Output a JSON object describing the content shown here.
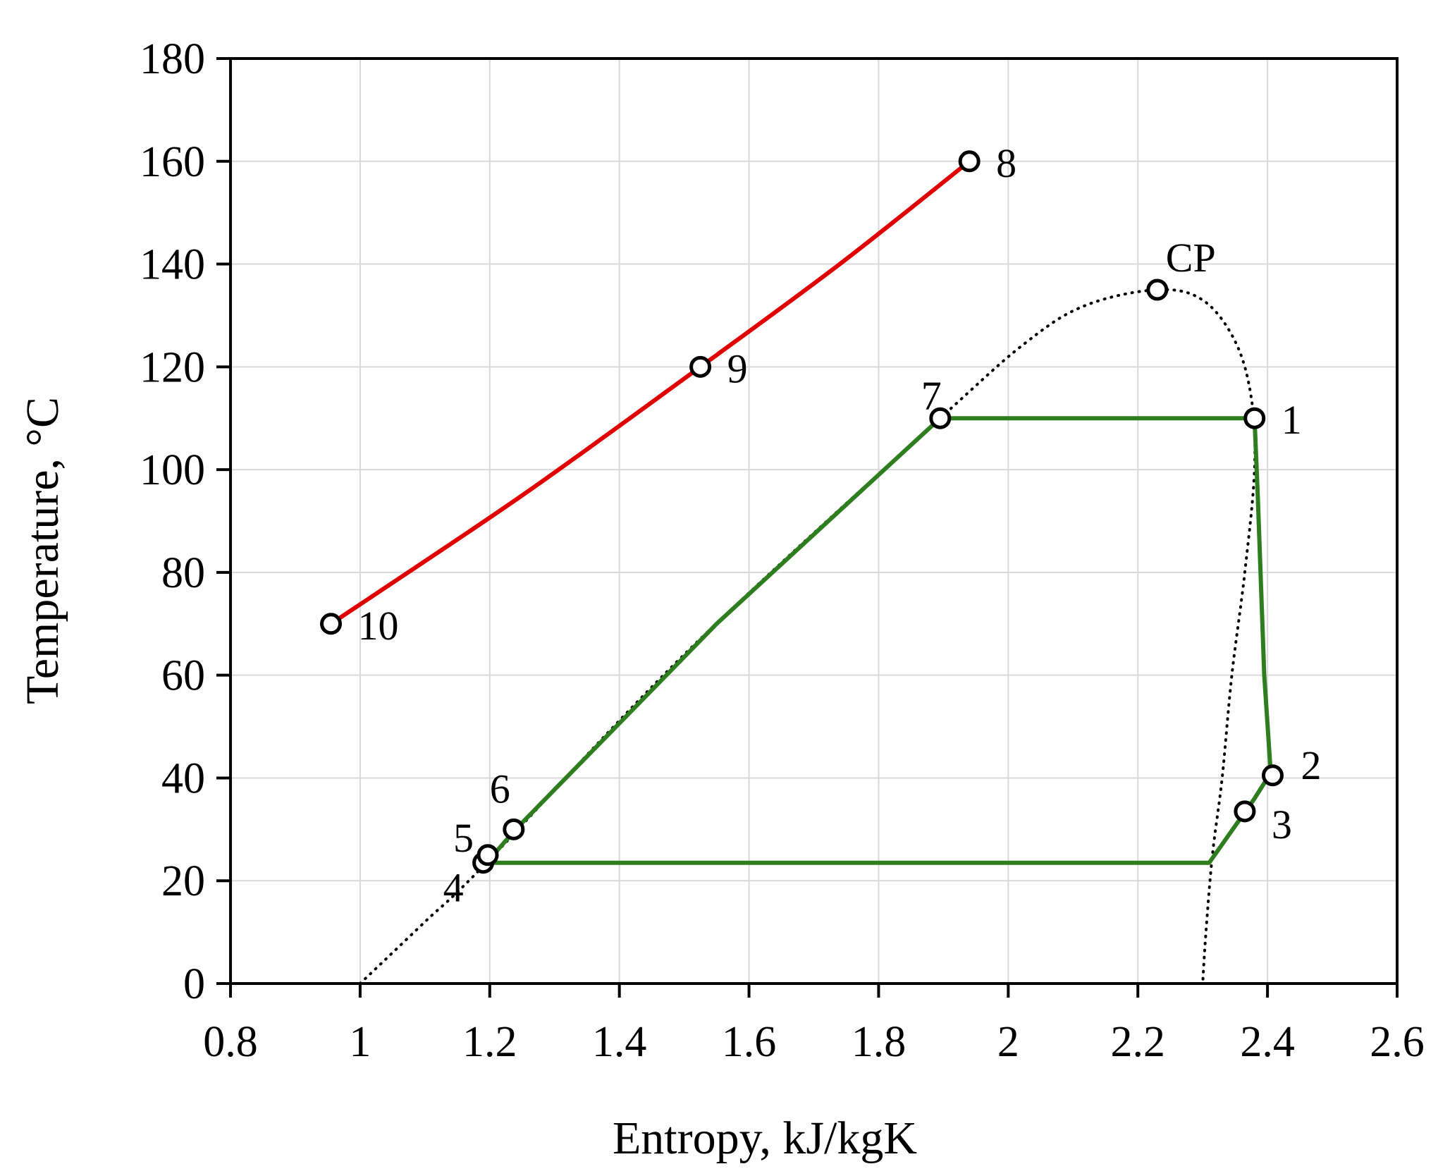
{
  "chart_data": {
    "type": "line",
    "xlabel": "Entropy, kJ/kgK",
    "ylabel": "Temperature, °C",
    "xlim": [
      0.8,
      2.6
    ],
    "ylim": [
      0,
      180
    ],
    "xticks": [
      "0.8",
      "1",
      "1.2",
      "1.4",
      "1.6",
      "1.8",
      "2",
      "2.2",
      "2.4",
      "2.6"
    ],
    "yticks": [
      "0",
      "20",
      "40",
      "60",
      "80",
      "100",
      "120",
      "140",
      "160",
      "180"
    ],
    "grid": true,
    "series": [
      {
        "color": "#e00000",
        "style": "solid",
        "points": [
          [
            0.955,
            70
          ],
          [
            1.25,
            95
          ],
          [
            1.525,
            120
          ],
          [
            1.74,
            140
          ],
          [
            1.94,
            160
          ]
        ]
      },
      {
        "color": "#2e7d1f",
        "style": "solid",
        "points": [
          [
            1.195,
            23.5
          ],
          [
            1.24,
            30
          ],
          [
            1.55,
            70
          ],
          [
            1.895,
            110
          ],
          [
            2.38,
            110
          ],
          [
            2.385,
            95
          ],
          [
            2.395,
            60
          ],
          [
            2.405,
            41
          ],
          [
            2.38,
            36
          ],
          [
            2.31,
            23.5
          ],
          [
            1.195,
            23.5
          ]
        ]
      },
      {
        "color": "#000000",
        "style": "dotted",
        "points": [
          [
            1.0,
            0
          ],
          [
            1.1,
            12
          ],
          [
            1.195,
            23.5
          ],
          [
            1.5,
            64
          ],
          [
            1.895,
            110
          ],
          [
            2.03,
            125
          ],
          [
            2.12,
            132
          ],
          [
            2.23,
            135
          ],
          [
            2.3,
            133
          ],
          [
            2.35,
            125
          ],
          [
            2.375,
            114
          ],
          [
            2.38,
            100
          ],
          [
            2.365,
            80
          ],
          [
            2.345,
            60
          ],
          [
            2.33,
            40
          ],
          [
            2.315,
            25
          ],
          [
            2.305,
            10
          ],
          [
            2.3,
            0
          ]
        ]
      }
    ],
    "points": [
      {
        "label": "1",
        "x": 2.38,
        "y": 110
      },
      {
        "label": "2",
        "x": 2.408,
        "y": 40.5
      },
      {
        "label": "3",
        "x": 2.365,
        "y": 33.5
      },
      {
        "label": "4",
        "x": 1.19,
        "y": 23.5
      },
      {
        "label": "5",
        "x": 1.197,
        "y": 25
      },
      {
        "label": "6",
        "x": 1.237,
        "y": 30
      },
      {
        "label": "7",
        "x": 1.895,
        "y": 110
      },
      {
        "label": "8",
        "x": 1.94,
        "y": 160
      },
      {
        "label": "9",
        "x": 1.525,
        "y": 120
      },
      {
        "label": "10",
        "x": 0.955,
        "y": 70
      },
      {
        "label": "CP",
        "x": 2.23,
        "y": 135
      }
    ]
  }
}
